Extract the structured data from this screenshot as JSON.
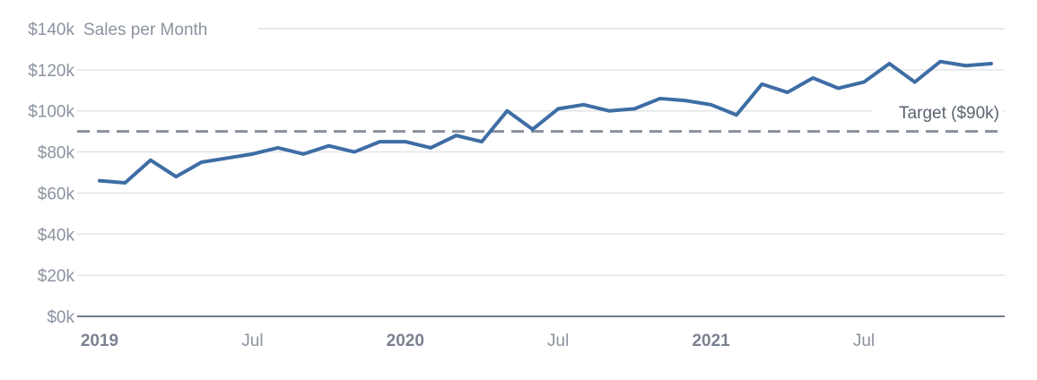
{
  "chart_data": {
    "type": "line",
    "title": "Sales per Month",
    "series_name": "Sales",
    "unit": "USD thousands per month",
    "x": [
      "Jan 2019",
      "Feb 2019",
      "Mar 2019",
      "Apr 2019",
      "May 2019",
      "Jun 2019",
      "Jul 2019",
      "Aug 2019",
      "Sep 2019",
      "Oct 2019",
      "Nov 2019",
      "Dec 2019",
      "Jan 2020",
      "Feb 2020",
      "Mar 2020",
      "Apr 2020",
      "May 2020",
      "Jun 2020",
      "Jul 2020",
      "Aug 2020",
      "Sep 2020",
      "Oct 2020",
      "Nov 2020",
      "Dec 2020",
      "Jan 2021",
      "Feb 2021",
      "Mar 2021",
      "Apr 2021",
      "May 2021",
      "Jun 2021",
      "Jul 2021",
      "Aug 2021",
      "Sep 2021",
      "Oct 2021",
      "Nov 2021",
      "Dec 2021"
    ],
    "values": [
      66,
      65,
      76,
      68,
      75,
      77,
      79,
      82,
      79,
      83,
      80,
      85,
      85,
      82,
      88,
      85,
      100,
      91,
      101,
      103,
      100,
      101,
      106,
      105,
      103,
      98,
      113,
      109,
      116,
      111,
      114,
      123,
      114,
      124,
      122,
      123
    ],
    "ylim": [
      0,
      140
    ],
    "grid": "horizontal",
    "legend_position": "none",
    "y_ticks": [
      {
        "value": 0,
        "label": "$0k"
      },
      {
        "value": 20,
        "label": "$20k"
      },
      {
        "value": 40,
        "label": "$40k"
      },
      {
        "value": 60,
        "label": "$60k"
      },
      {
        "value": 80,
        "label": "$80k"
      },
      {
        "value": 100,
        "label": "$100k"
      },
      {
        "value": 120,
        "label": "$120k"
      },
      {
        "value": 140,
        "label": "$140k"
      }
    ],
    "x_ticks": [
      {
        "month_index": 0,
        "label": "2019",
        "bold": true
      },
      {
        "month_index": 6,
        "label": "Jul",
        "bold": false
      },
      {
        "month_index": 12,
        "label": "2020",
        "bold": true
      },
      {
        "month_index": 18,
        "label": "Jul",
        "bold": false
      },
      {
        "month_index": 24,
        "label": "2021",
        "bold": true
      },
      {
        "month_index": 30,
        "label": "Jul",
        "bold": false
      }
    ],
    "target": {
      "value": 90,
      "label": "Target ($90k)"
    }
  },
  "colors": {
    "line": "#3e6da5",
    "target_dash": "#8a919d",
    "gridline": "#e2e4e6",
    "axis_line": "#717b89",
    "tick_label": "#8b93a0",
    "year_label": "#7a8290",
    "title": "#8b93a0",
    "target_label": "#5a6370",
    "background": "#ffffff"
  }
}
